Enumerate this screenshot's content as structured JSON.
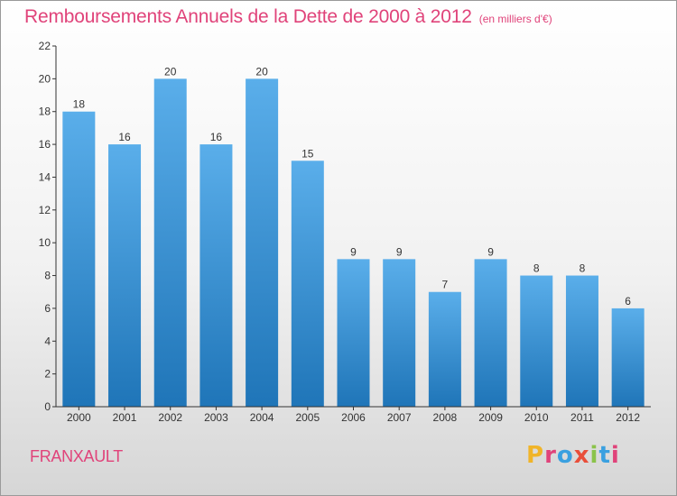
{
  "header": {
    "title": "Remboursements Annuels de la Dette de 2000 à 2012",
    "subtitle": "(en milliers d'€)"
  },
  "footer": {
    "commune": "FRANXAULT",
    "logo_text": "Proxiti",
    "logo_colors": [
      "#f0b429",
      "#e0437a",
      "#3aa0e0",
      "#e94e3a",
      "#8bc34a",
      "#3aa0e0",
      "#e0437a"
    ]
  },
  "colors": {
    "title": "#e0437a",
    "bar_top": "#5aaeea",
    "bar_bottom": "#1f75b8",
    "axis": "#333333"
  },
  "chart_data": {
    "type": "bar",
    "categories": [
      "2000",
      "2001",
      "2002",
      "2003",
      "2004",
      "2005",
      "2006",
      "2007",
      "2008",
      "2009",
      "2010",
      "2011",
      "2012"
    ],
    "values": [
      18,
      16,
      20,
      16,
      20,
      15,
      9,
      9,
      7,
      9,
      8,
      8,
      6
    ],
    "ylim": [
      0,
      22
    ],
    "yticks": [
      0,
      2,
      4,
      6,
      8,
      10,
      12,
      14,
      16,
      18,
      20,
      22
    ],
    "grid": false,
    "legend": "none"
  }
}
